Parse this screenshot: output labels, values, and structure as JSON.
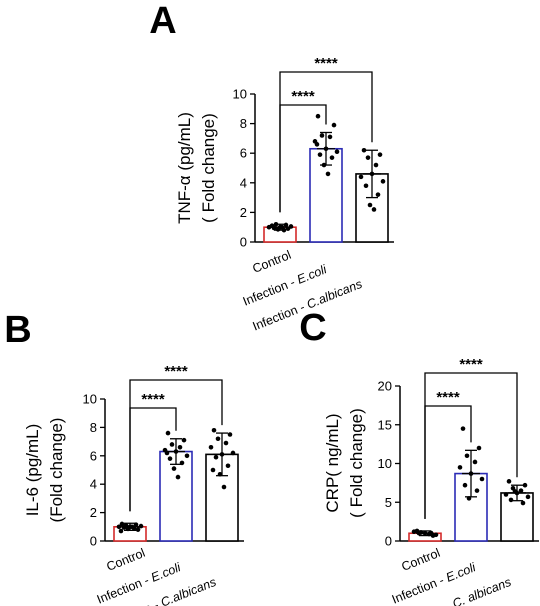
{
  "chart_data": [
    {
      "panel": "A",
      "type": "bar",
      "ylabel_line1": "TNF-α (pg/mL)",
      "ylabel_line2": "( Fold change)",
      "ylim": [
        0,
        10
      ],
      "yticks": [
        0,
        2,
        4,
        6,
        8,
        10
      ],
      "categories": [
        {
          "pre": "Control",
          "italic": ""
        },
        {
          "pre": "Infection - ",
          "italic": "E.coli"
        },
        {
          "pre": "Infection - ",
          "italic": "C.albicans"
        }
      ],
      "values": [
        1.0,
        6.3,
        4.6
      ],
      "errors": [
        0.2,
        1.1,
        1.6
      ],
      "bar_colors": [
        "#d42a2a",
        "#2b2bb5",
        "#000000"
      ],
      "points": [
        [
          1.0,
          1.1,
          0.9,
          1.2,
          0.8,
          1.0,
          1.05,
          0.95,
          1.15,
          0.85,
          1.0
        ],
        [
          6.3,
          8.5,
          7.9,
          7.2,
          7.1,
          6.8,
          6.1,
          5.9,
          5.7,
          5.2,
          4.6,
          6.6
        ],
        [
          4.6,
          6.2,
          5.9,
          5.7,
          5.2,
          4.4,
          4.1,
          3.8,
          3.2,
          2.5,
          2.2
        ]
      ],
      "comparisons": [
        {
          "from": 0,
          "to": 1,
          "label": "****"
        },
        {
          "from": 0,
          "to": 2,
          "label": "****"
        }
      ]
    },
    {
      "panel": "B",
      "type": "bar",
      "ylabel_line1": "IL-6 (pg/mL)",
      "ylabel_line2": "(Fold change)",
      "ylim": [
        0,
        10
      ],
      "yticks": [
        0,
        2,
        4,
        6,
        8,
        10
      ],
      "categories": [
        {
          "pre": "Control",
          "italic": ""
        },
        {
          "pre": "Infection - ",
          "italic": "E.coli"
        },
        {
          "pre": "Infection - ",
          "italic": "C.albicans"
        }
      ],
      "values": [
        1.0,
        6.3,
        6.1
      ],
      "errors": [
        0.25,
        0.9,
        1.5
      ],
      "bar_colors": [
        "#d42a2a",
        "#2b2bb5",
        "#000000"
      ],
      "points": [
        [
          1.0,
          1.2,
          0.8,
          1.1,
          0.9,
          1.0,
          1.05,
          0.95,
          1.15,
          0.85,
          1.0,
          0.7
        ],
        [
          6.3,
          7.6,
          7.1,
          6.8,
          6.6,
          6.4,
          6.0,
          5.8,
          5.5,
          5.1,
          4.5,
          6.2
        ],
        [
          6.1,
          7.8,
          7.5,
          7.2,
          6.9,
          6.6,
          6.2,
          5.9,
          5.3,
          4.7,
          3.8,
          5.0
        ]
      ],
      "comparisons": [
        {
          "from": 0,
          "to": 1,
          "label": "****"
        },
        {
          "from": 0,
          "to": 2,
          "label": "****"
        }
      ]
    },
    {
      "panel": "C",
      "type": "bar",
      "ylabel_line1": "CRP( ng/mL)",
      "ylabel_line2": "( Fold change)",
      "ylim": [
        0,
        20
      ],
      "yticks": [
        0,
        5,
        10,
        15,
        20
      ],
      "categories": [
        {
          "pre": "Control",
          "italic": ""
        },
        {
          "pre": "Infection - ",
          "italic": "E.coli"
        },
        {
          "pre": "Infection - ",
          "italic": "C. albicans"
        }
      ],
      "values": [
        1.0,
        8.7,
        6.2
      ],
      "errors": [
        0.3,
        3.0,
        1.0
      ],
      "bar_colors": [
        "#d42a2a",
        "#2b2bb5",
        "#000000"
      ],
      "points": [
        [
          1.0,
          1.3,
          0.7,
          1.1,
          0.9,
          1.2,
          0.8,
          1.0,
          1.05
        ],
        [
          8.7,
          14.5,
          12.0,
          11.0,
          10.2,
          9.5,
          8.0,
          7.2,
          6.5,
          5.5
        ],
        [
          6.2,
          7.7,
          7.2,
          6.8,
          6.5,
          6.0,
          5.7,
          5.3,
          4.9,
          6.4
        ]
      ],
      "comparisons": [
        {
          "from": 0,
          "to": 1,
          "label": "****"
        },
        {
          "from": 0,
          "to": 2,
          "label": "****"
        }
      ]
    }
  ]
}
